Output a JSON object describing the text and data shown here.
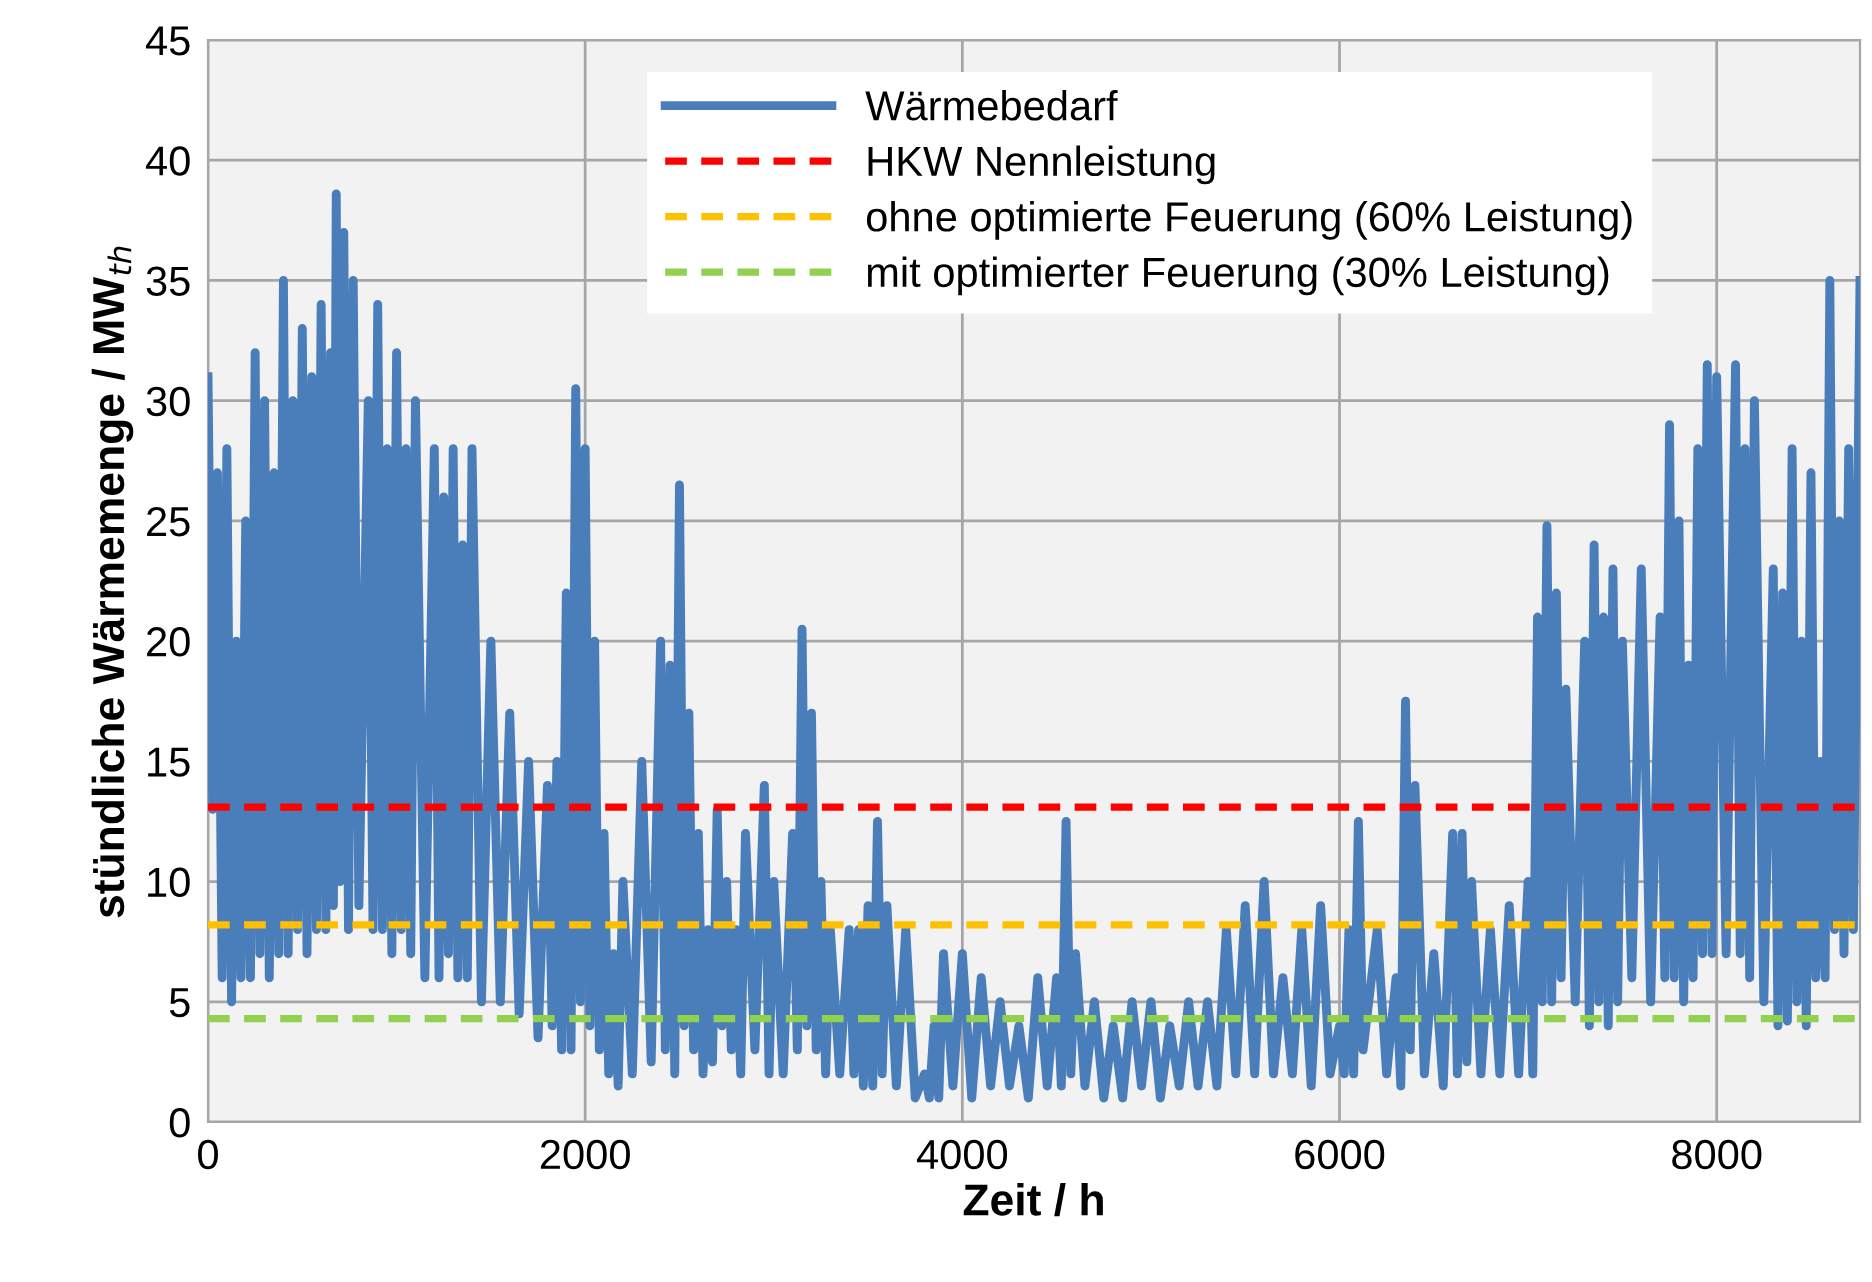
{
  "chart_data": {
    "type": "line",
    "xlabel": "Zeit / h",
    "ylabel": "stündliche Wärmemenge / MW$_{th}$",
    "xlim": [
      0,
      8760
    ],
    "xticks": [
      0,
      2000,
      4000,
      6000,
      8000
    ],
    "ylim": [
      0,
      45
    ],
    "yticks": [
      0,
      5,
      10,
      15,
      20,
      25,
      30,
      35,
      40,
      45
    ],
    "grid": true,
    "legend": "top",
    "marker": "none",
    "series": [
      {
        "name": "Wärmebedarf",
        "color": "#4a7ebb",
        "line_style": "solid",
        "x": [
          0,
          25,
          50,
          75,
          100,
          125,
          150,
          175,
          200,
          225,
          250,
          275,
          300,
          325,
          350,
          375,
          400,
          425,
          450,
          475,
          500,
          525,
          550,
          575,
          600,
          625,
          650,
          665,
          680,
          700,
          720,
          745,
          770,
          800,
          850,
          875,
          900,
          925,
          950,
          975,
          1000,
          1025,
          1050,
          1075,
          1100,
          1150,
          1200,
          1225,
          1250,
          1275,
          1300,
          1325,
          1350,
          1375,
          1400,
          1450,
          1500,
          1550,
          1600,
          1650,
          1700,
          1750,
          1800,
          1825,
          1850,
          1875,
          1900,
          1925,
          1950,
          1975,
          2000,
          2025,
          2050,
          2075,
          2100,
          2125,
          2150,
          2175,
          2200,
          2250,
          2300,
          2350,
          2400,
          2425,
          2450,
          2475,
          2500,
          2525,
          2550,
          2575,
          2600,
          2625,
          2650,
          2675,
          2700,
          2725,
          2750,
          2775,
          2800,
          2825,
          2850,
          2900,
          2950,
          2975,
          3000,
          3050,
          3100,
          3125,
          3150,
          3175,
          3200,
          3225,
          3250,
          3275,
          3300,
          3350,
          3400,
          3425,
          3450,
          3475,
          3500,
          3525,
          3550,
          3575,
          3600,
          3650,
          3700,
          3750,
          3800,
          3825,
          3850,
          3875,
          3900,
          3950,
          4000,
          4050,
          4100,
          4150,
          4200,
          4250,
          4300,
          4350,
          4400,
          4450,
          4500,
          4525,
          4550,
          4575,
          4600,
          4650,
          4700,
          4750,
          4800,
          4850,
          4900,
          4950,
          5000,
          5050,
          5100,
          5150,
          5200,
          5250,
          5300,
          5350,
          5400,
          5450,
          5500,
          5550,
          5600,
          5650,
          5700,
          5750,
          5800,
          5850,
          5900,
          5950,
          6000,
          6025,
          6050,
          6075,
          6100,
          6125,
          6200,
          6250,
          6300,
          6325,
          6350,
          6375,
          6400,
          6450,
          6500,
          6550,
          6600,
          6625,
          6650,
          6675,
          6700,
          6750,
          6800,
          6850,
          6900,
          6950,
          7000,
          7025,
          7050,
          7075,
          7100,
          7125,
          7150,
          7175,
          7200,
          7250,
          7300,
          7325,
          7350,
          7375,
          7400,
          7425,
          7450,
          7475,
          7500,
          7550,
          7600,
          7650,
          7700,
          7725,
          7750,
          7775,
          7800,
          7825,
          7850,
          7875,
          7900,
          7925,
          7950,
          7975,
          8000,
          8050,
          8100,
          8125,
          8150,
          8175,
          8200,
          8250,
          8300,
          8325,
          8350,
          8375,
          8400,
          8425,
          8450,
          8475,
          8500,
          8525,
          8550,
          8575,
          8600,
          8625,
          8650,
          8675,
          8700,
          8725,
          8760
        ],
        "values": [
          31,
          13,
          27,
          6,
          28,
          5,
          20,
          6,
          25,
          6,
          32,
          7,
          30,
          6,
          27,
          7,
          35,
          7,
          30,
          8,
          33,
          7,
          31,
          8,
          34,
          8,
          32,
          9,
          38.6,
          10,
          37,
          8,
          35,
          9,
          30,
          8,
          34,
          8,
          28,
          7,
          32,
          8,
          28,
          7,
          30,
          6,
          28,
          6,
          26,
          7,
          28,
          6,
          24,
          6,
          28,
          5,
          20,
          5,
          17,
          4.5,
          15,
          3.5,
          14,
          4,
          15,
          3,
          22,
          3,
          30.5,
          5,
          28,
          4,
          20,
          3,
          12,
          2,
          7,
          1.5,
          10,
          2,
          15,
          2.5,
          20,
          3,
          19,
          2,
          26.5,
          4,
          17,
          3,
          12,
          2,
          8,
          2.5,
          13,
          4,
          10,
          3,
          8,
          2,
          12,
          3,
          14,
          2,
          10,
          2,
          12,
          3,
          20.5,
          4,
          17,
          3,
          10,
          2,
          8,
          2,
          8,
          2,
          8,
          1.5,
          9,
          1.5,
          12.5,
          2,
          9,
          1.5,
          8,
          1,
          2,
          1,
          4,
          1,
          7,
          1.5,
          7,
          1,
          6,
          1.5,
          5,
          1.5,
          4,
          1,
          6,
          1.5,
          6,
          1.5,
          12.5,
          2,
          7,
          1.5,
          5,
          1,
          4,
          1,
          5,
          1.5,
          5,
          1,
          4,
          1.5,
          5,
          1.5,
          5,
          1.5,
          8,
          2,
          9,
          2,
          10,
          2,
          6,
          2,
          8,
          1.5,
          9,
          2,
          4,
          2,
          8,
          2,
          12.5,
          3,
          8,
          2,
          6,
          1.5,
          17.5,
          3,
          14,
          2,
          7,
          1.5,
          12,
          2,
          12,
          2.5,
          10,
          2,
          8,
          2,
          9,
          2,
          10,
          2,
          21,
          5,
          24.8,
          5,
          22,
          6,
          18,
          5,
          20,
          4,
          24,
          5,
          21,
          4,
          23,
          5,
          20,
          6,
          23,
          5,
          21,
          6,
          29,
          6,
          25,
          5,
          19,
          6,
          28,
          7,
          31.5,
          7,
          31,
          7,
          31.5,
          7,
          28,
          6,
          30,
          5,
          23,
          4,
          22,
          4.2,
          28,
          5,
          20,
          4,
          27,
          6,
          15,
          6,
          35,
          8,
          25,
          7,
          28,
          8,
          35
        ]
      },
      {
        "name": "HKW Nennleistung",
        "color": "#ff0000",
        "line_style": "dashed",
        "x": [
          0,
          8760
        ],
        "values": [
          13.1,
          13.1
        ]
      },
      {
        "name": "ohne optimierte Feuerung (60% Leistung)",
        "color": "#ffc000",
        "line_style": "dashed",
        "x": [
          0,
          8760
        ],
        "values": [
          8.2,
          8.2
        ]
      },
      {
        "name": "mit optimierter Feuerung (30% Leistung)",
        "color": "#92d050",
        "line_style": "dashed",
        "x": [
          0,
          8760
        ],
        "values": [
          4.3,
          4.3
        ]
      }
    ]
  }
}
